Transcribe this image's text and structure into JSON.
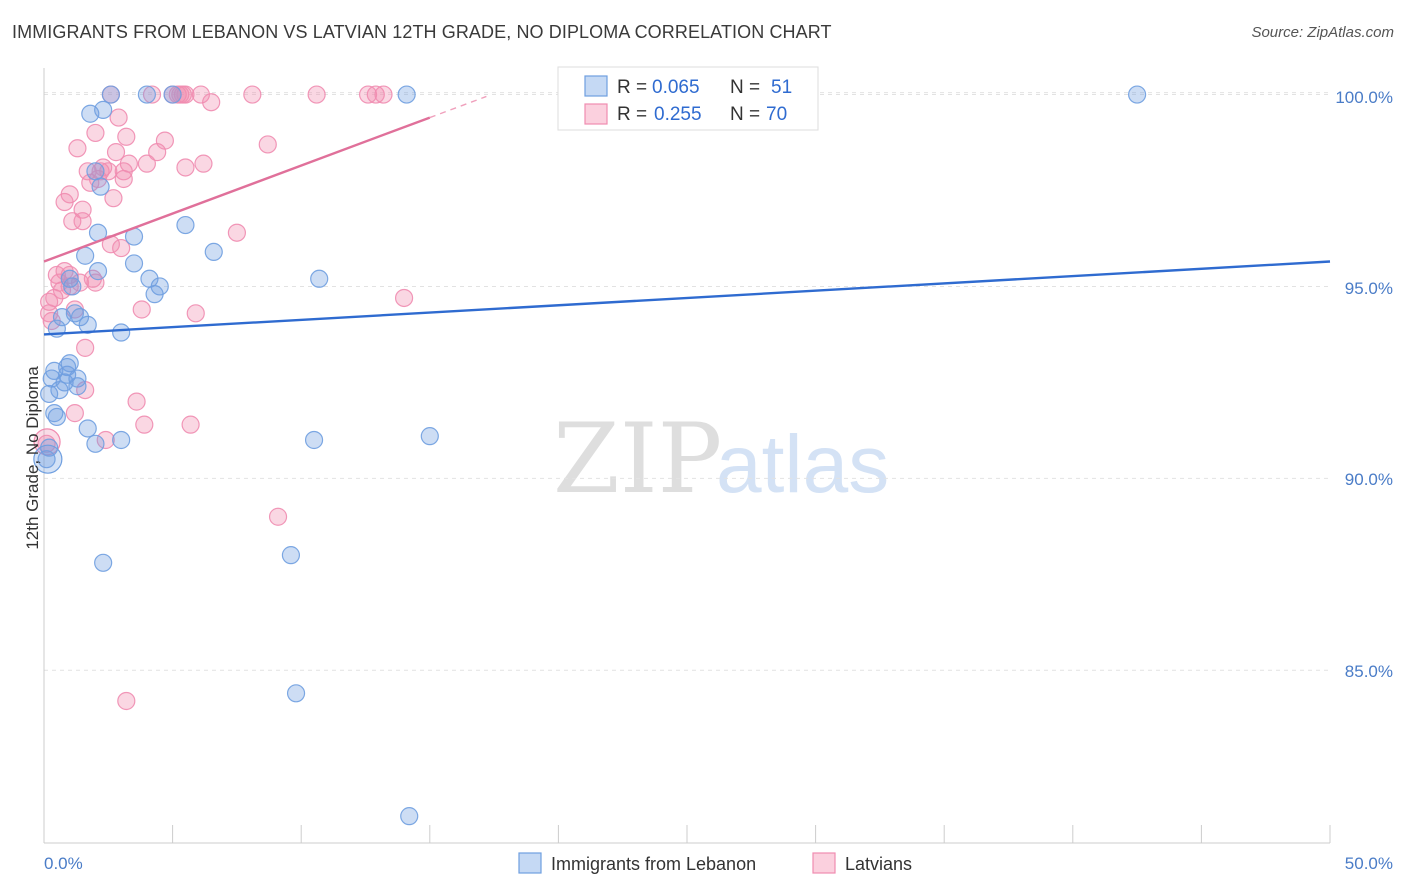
{
  "header": {
    "title": "IMMIGRANTS FROM LEBANON VS LATVIAN 12TH GRADE, NO DIPLOMA CORRELATION CHART",
    "source": "Source: ZipAtlas.com"
  },
  "watermark": {
    "zip": "ZIP",
    "atlas": "atlas"
  },
  "legend": {
    "series": [
      {
        "r_label": "R =",
        "r_value": "0.065",
        "n_label": "N =",
        "n_value": "51"
      },
      {
        "r_label": "R =",
        "r_value": "0.255",
        "n_label": "N =",
        "n_value": "70"
      }
    ]
  },
  "chart_data": {
    "type": "scatter",
    "title": "IMMIGRANTS FROM LEBANON VS LATVIAN 12TH GRADE, NO DIPLOMA CORRELATION CHART",
    "xlabel": "",
    "ylabel": "12th Grade, No Diploma",
    "xlim": [
      0,
      50
    ],
    "ylim": [
      80.5,
      100.9
    ],
    "x_tick_labels": [
      "0.0%",
      "50.0%"
    ],
    "y_ticks": [
      85,
      90,
      95,
      100
    ],
    "y_tick_labels": [
      "85.0%",
      "90.0%",
      "95.0%",
      "100.0%"
    ],
    "grid": true,
    "legend_position": "bottom",
    "series": [
      {
        "name": "Immigrants from Lebanon",
        "color": "#6f9fe0",
        "trend": {
          "x0": 0,
          "y0": 93.75,
          "x1": 50,
          "y1": 95.65
        },
        "points": [
          [
            0.1,
            90.5
          ],
          [
            0.2,
            90.8
          ],
          [
            0.2,
            92.2
          ],
          [
            0.3,
            92.6
          ],
          [
            0.4,
            92.8
          ],
          [
            0.5,
            93.9
          ],
          [
            0.5,
            91.6
          ],
          [
            0.6,
            92.3
          ],
          [
            0.7,
            94.2
          ],
          [
            0.8,
            92.5
          ],
          [
            0.9,
            92.7
          ],
          [
            1.0,
            93.0
          ],
          [
            1.0,
            95.2
          ],
          [
            1.1,
            95.0
          ],
          [
            1.2,
            94.3
          ],
          [
            1.3,
            92.6
          ],
          [
            1.3,
            92.4
          ],
          [
            1.4,
            94.2
          ],
          [
            1.6,
            95.8
          ],
          [
            1.7,
            94.0
          ],
          [
            1.7,
            91.3
          ],
          [
            1.8,
            99.5
          ],
          [
            2.0,
            98.0
          ],
          [
            2.0,
            90.9
          ],
          [
            2.1,
            95.4
          ],
          [
            2.1,
            96.4
          ],
          [
            2.2,
            97.6
          ],
          [
            2.3,
            87.8
          ],
          [
            2.3,
            99.6
          ],
          [
            2.6,
            100.0
          ],
          [
            3.0,
            93.8
          ],
          [
            3.0,
            91.0
          ],
          [
            3.5,
            95.6
          ],
          [
            3.5,
            96.3
          ],
          [
            4.0,
            100.0
          ],
          [
            4.1,
            95.2
          ],
          [
            4.3,
            94.8
          ],
          [
            4.5,
            95.0
          ],
          [
            5.0,
            100.0
          ],
          [
            5.5,
            96.6
          ],
          [
            6.6,
            95.9
          ],
          [
            9.6,
            88.0
          ],
          [
            9.8,
            84.4
          ],
          [
            10.5,
            91.0
          ],
          [
            10.7,
            95.2
          ],
          [
            14.1,
            100.0
          ],
          [
            14.2,
            81.2
          ],
          [
            15.0,
            91.1
          ],
          [
            42.5,
            100.0
          ],
          [
            0.4,
            91.7
          ],
          [
            0.9,
            92.9
          ]
        ]
      },
      {
        "name": "Latvians",
        "color": "#f08cb0",
        "trend": {
          "x0": 0,
          "y0": 95.65,
          "x1": 15,
          "y1": 99.4
        },
        "trend_dash": {
          "x0": 15,
          "y0": 99.4,
          "x1": 17.2,
          "y1": 99.95
        },
        "points": [
          [
            0.1,
            90.9
          ],
          [
            0.2,
            94.6
          ],
          [
            0.3,
            94.1
          ],
          [
            0.4,
            94.7
          ],
          [
            0.5,
            95.3
          ],
          [
            0.6,
            95.1
          ],
          [
            0.7,
            94.9
          ],
          [
            0.8,
            95.4
          ],
          [
            0.8,
            97.2
          ],
          [
            1.0,
            95.3
          ],
          [
            1.0,
            97.4
          ],
          [
            1.1,
            96.7
          ],
          [
            1.2,
            94.4
          ],
          [
            1.2,
            91.7
          ],
          [
            1.3,
            98.6
          ],
          [
            1.4,
            95.1
          ],
          [
            1.5,
            97.0
          ],
          [
            1.5,
            96.7
          ],
          [
            1.6,
            93.4
          ],
          [
            1.6,
            92.3
          ],
          [
            1.7,
            98.0
          ],
          [
            1.8,
            97.7
          ],
          [
            1.9,
            95.2
          ],
          [
            2.0,
            95.1
          ],
          [
            2.0,
            99.0
          ],
          [
            2.1,
            97.8
          ],
          [
            2.2,
            98.0
          ],
          [
            2.3,
            98.1
          ],
          [
            2.4,
            91.0
          ],
          [
            2.5,
            98.0
          ],
          [
            2.6,
            96.1
          ],
          [
            2.7,
            97.3
          ],
          [
            2.8,
            98.5
          ],
          [
            2.9,
            99.4
          ],
          [
            3.0,
            96.0
          ],
          [
            3.1,
            97.8
          ],
          [
            3.1,
            98.0
          ],
          [
            3.2,
            98.9
          ],
          [
            3.2,
            84.2
          ],
          [
            3.3,
            98.2
          ],
          [
            3.6,
            92.0
          ],
          [
            3.8,
            94.4
          ],
          [
            3.9,
            91.4
          ],
          [
            4.0,
            98.2
          ],
          [
            4.2,
            100.0
          ],
          [
            4.4,
            98.5
          ],
          [
            4.7,
            98.8
          ],
          [
            5.0,
            100.0
          ],
          [
            5.2,
            100.0
          ],
          [
            5.3,
            100.0
          ],
          [
            5.4,
            100.0
          ],
          [
            5.5,
            100.0
          ],
          [
            5.5,
            98.1
          ],
          [
            5.7,
            91.4
          ],
          [
            5.9,
            94.3
          ],
          [
            6.1,
            100.0
          ],
          [
            6.2,
            98.2
          ],
          [
            6.5,
            99.8
          ],
          [
            7.5,
            96.4
          ],
          [
            8.1,
            100.0
          ],
          [
            8.7,
            98.7
          ],
          [
            9.1,
            89.0
          ],
          [
            10.6,
            100.0
          ],
          [
            12.6,
            100.0
          ],
          [
            12.9,
            100.0
          ],
          [
            13.2,
            100.0
          ],
          [
            14.0,
            94.7
          ],
          [
            0.2,
            94.3
          ],
          [
            2.6,
            100.0
          ],
          [
            1.0,
            95.0
          ]
        ]
      }
    ]
  }
}
